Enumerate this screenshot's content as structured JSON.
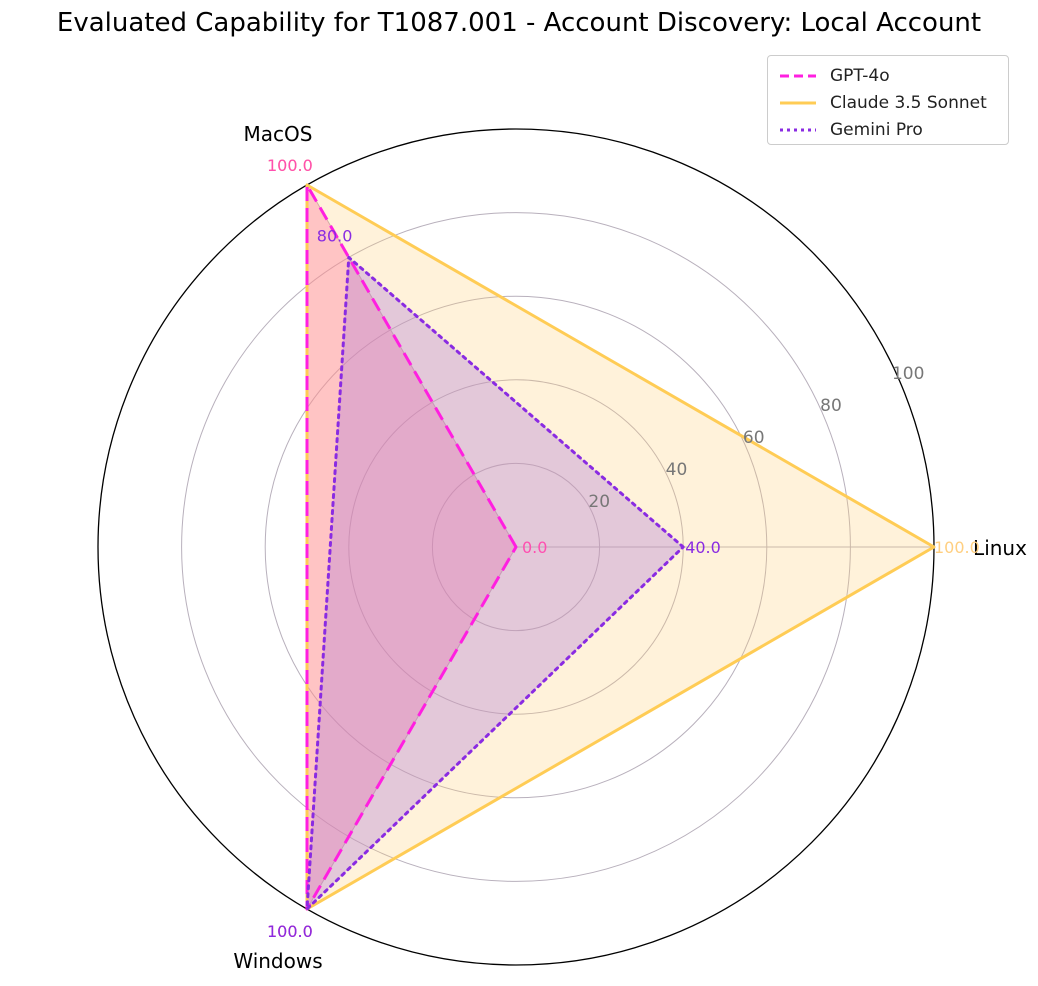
{
  "chart_data": {
    "type": "radar",
    "title": "Evaluated Capability for T1087.001 - Account Discovery: Local Account",
    "axes": [
      "Linux",
      "MacOS",
      "Windows"
    ],
    "radial_range": [
      0,
      100
    ],
    "radial_ticks": [
      "20",
      "40",
      "60",
      "80",
      "100"
    ],
    "grid": true,
    "legend_placement": "top-right",
    "series": [
      {
        "name": "GPT-4o",
        "values": [
          0,
          100,
          100
        ],
        "color": "#ff1fe0",
        "fill": "#ff6f9a",
        "line_style": "dashed",
        "value_labels": [
          "0.0",
          "100.0",
          "100.0"
        ]
      },
      {
        "name": "Claude 3.5 Sonnet",
        "values": [
          100,
          100,
          100
        ],
        "color": "#ffcc55",
        "fill": "#ffd27a",
        "line_style": "solid",
        "value_labels": [
          "100.0",
          "100.0",
          "100.0"
        ]
      },
      {
        "name": "Gemini Pro",
        "values": [
          40,
          80,
          100
        ],
        "color": "#8a2be2",
        "fill": "#b07cd6",
        "line_style": "dotted",
        "value_labels": [
          "40.0",
          "80.0",
          "100.0"
        ]
      }
    ]
  }
}
